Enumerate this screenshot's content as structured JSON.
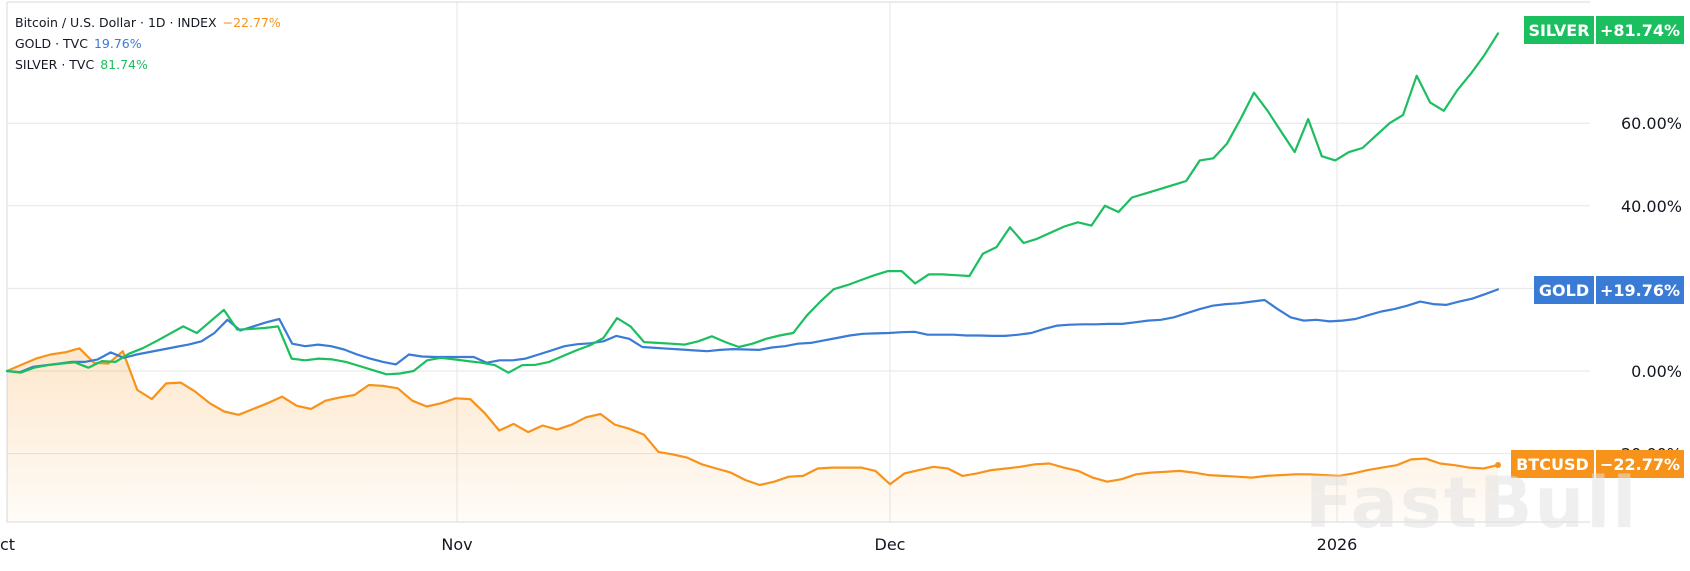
{
  "legend": [
    {
      "name": "Bitcoin / U.S. Dollar · 1D · INDEX",
      "value": "−22.77%",
      "color": "#f7931a"
    },
    {
      "name": "GOLD · TVC",
      "value": "19.76%",
      "color": "#3a7bd5"
    },
    {
      "name": "SILVER · TVC",
      "value": "81.74%",
      "color": "#1bbf5f"
    }
  ],
  "watermark": "FastBull",
  "chart_data": {
    "type": "line",
    "x_tick_labels": [
      "ct",
      "Nov",
      "Dec",
      "2026"
    ],
    "y_tick_labels": [
      "60.00%",
      "40.00%",
      "0.00%",
      "-20.00%"
    ],
    "ylim": [
      -36,
      88
    ],
    "grid": true,
    "series": [
      {
        "name": "SILVER",
        "tag_label": "SILVER",
        "tag_value": "+81.74%",
        "color": "#1bbf5f",
        "values": [
          0,
          -0.4,
          0.8,
          1.4,
          1.8,
          2.1,
          0.8,
          2.4,
          2.2,
          4.2,
          5.5,
          7.2,
          9,
          10.8,
          9.2,
          12,
          14.8,
          10,
          10.2,
          10.4,
          10.8,
          3,
          2.6,
          3,
          2.8,
          2.2,
          1.2,
          0.2,
          -0.8,
          -0.6,
          0,
          2.6,
          3.2,
          2.8,
          2.4,
          2,
          1.4,
          -0.4,
          1.4,
          1.5,
          2.2,
          3.6,
          5,
          6.2,
          8,
          12.8,
          10.8,
          7,
          6.8,
          6.6,
          6.4,
          7.2,
          8.4,
          7,
          5.8,
          6.6,
          7.8,
          8.6,
          9.2,
          13.4,
          16.8,
          19.8,
          20.8,
          22,
          23.2,
          24.2,
          24.2,
          21.2,
          23.4,
          23.4,
          23.2,
          23,
          28.4,
          30,
          34.8,
          31,
          32,
          33.5,
          35,
          36,
          35.2,
          40,
          38.5,
          42,
          43,
          44,
          45,
          46,
          51,
          51.5,
          55,
          61,
          67.4,
          63,
          58,
          53,
          61,
          52,
          51,
          53,
          54,
          57,
          60,
          62,
          71.5,
          65,
          63,
          68,
          72,
          76.5,
          81.74
        ]
      },
      {
        "name": "GOLD",
        "tag_label": "GOLD",
        "tag_value": "+19.76%",
        "color": "#3a7bd5",
        "values": [
          0,
          -0.3,
          1,
          1.4,
          1.8,
          2.2,
          2.2,
          2.8,
          4.5,
          3.2,
          4,
          4.6,
          5.2,
          5.8,
          6.4,
          7.2,
          9.2,
          12.4,
          9.8,
          10.8,
          11.8,
          12.6,
          6.6,
          6,
          6.4,
          6,
          5.2,
          4,
          3,
          2.2,
          1.6,
          4,
          3.5,
          3.4,
          3.4,
          3.4,
          3.4,
          2,
          2.6,
          2.6,
          3,
          4,
          5,
          6,
          6.5,
          6.7,
          7.2,
          8.5,
          7.8,
          5.8,
          5.6,
          5.4,
          5.2,
          5,
          4.8,
          5.1,
          5.3,
          5.2,
          5.1,
          5.7,
          6,
          6.6,
          6.8,
          7.4,
          8,
          8.6,
          9,
          9.1,
          9.2,
          9.4,
          9.5,
          8.8,
          8.8,
          8.8,
          8.6,
          8.6,
          8.5,
          8.5,
          8.8,
          9.2,
          10.2,
          11,
          11.2,
          11.3,
          11.3,
          11.4,
          11.4,
          11.8,
          12.2,
          12.4,
          13,
          14,
          15,
          15.8,
          16.2,
          16.4,
          16.8,
          17.2,
          15,
          13,
          12.2,
          12.4,
          12,
          12.2,
          12.6,
          13.5,
          14.4,
          15,
          15.8,
          16.8,
          16.2,
          16,
          16.8,
          17.5,
          18.6,
          19.76
        ]
      },
      {
        "name": "BTCUSD",
        "tag_label": "BTCUSD",
        "tag_value": "−22.77%",
        "color": "#f7931a",
        "values": [
          0,
          1.5,
          3,
          4,
          4.5,
          5.5,
          2,
          1.8,
          4.8,
          -4.6,
          -6.8,
          -3,
          -2.8,
          -5,
          -7.8,
          -9.8,
          -10.6,
          -9.2,
          -7.8,
          -6.2,
          -8.4,
          -9.2,
          -7.2,
          -6.4,
          -5.8,
          -3.4,
          -3.6,
          -4.2,
          -7.2,
          -8.6,
          -7.8,
          -6.6,
          -6.8,
          -10.2,
          -14.4,
          -12.8,
          -14.8,
          -13.2,
          -14.2,
          -13,
          -11.2,
          -10.4,
          -13,
          -14,
          -15.4,
          -19.6,
          -20.2,
          -21,
          -22.6,
          -23.6,
          -24.6,
          -26.4,
          -27.6,
          -26.8,
          -25.6,
          -25.4,
          -23.6,
          -23.4,
          -23.4,
          -23.4,
          -24.2,
          -27.4,
          -24.8,
          -24,
          -23.2,
          -23.6,
          -25.4,
          -24.8,
          -24,
          -23.6,
          -23.2,
          -22.6,
          -22.4,
          -23.4,
          -24.2,
          -25.8,
          -26.8,
          -26.2,
          -25,
          -24.6,
          -24.4,
          -24.2,
          -24.6,
          -25.2,
          -25.4,
          -25.6,
          -25.8,
          -25.4,
          -25.2,
          -25,
          -25,
          -25.2,
          -25.4,
          -24.8,
          -24,
          -23.4,
          -22.8,
          -21.4,
          -21.2,
          -22.4,
          -22.8,
          -23.4,
          -23.6,
          -22.77
        ]
      }
    ]
  }
}
